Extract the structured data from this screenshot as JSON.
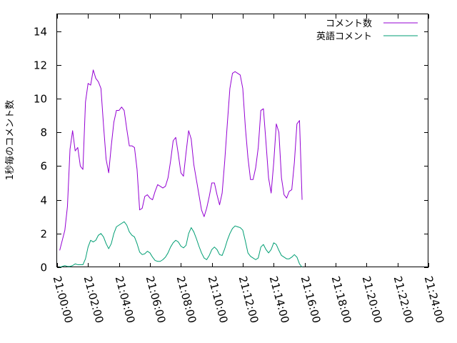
{
  "chart_data": {
    "type": "line",
    "title": "",
    "xlabel": "",
    "ylabel": "1秒毎のコメント数",
    "xlim": [
      "21:00:00",
      "21:24:00"
    ],
    "ylim": [
      0,
      15
    ],
    "x_ticks": [
      "21:00:00",
      "21:02:00",
      "21:04:00",
      "21:06:00",
      "21:08:00",
      "21:10:00",
      "21:12:00",
      "21:14:00",
      "21:16:00",
      "21:18:00",
      "21:20:00",
      "21:22:00",
      "21:24:00"
    ],
    "y_ticks": [
      "0",
      "2",
      "4",
      "6",
      "8",
      "10",
      "12",
      "14"
    ],
    "grid": false,
    "legend_position": "top-right",
    "series": [
      {
        "name": "コメント数",
        "color": "#9400d3",
        "points": [
          [
            "21:00:10",
            1.0
          ],
          [
            "21:00:30",
            2.2
          ],
          [
            "21:00:40",
            3.6
          ],
          [
            "21:00:50",
            7.0
          ],
          [
            "21:01:00",
            8.1
          ],
          [
            "21:01:10",
            6.9
          ],
          [
            "21:01:20",
            7.1
          ],
          [
            "21:01:30",
            6.0
          ],
          [
            "21:01:40",
            5.8
          ],
          [
            "21:01:50",
            9.8
          ],
          [
            "21:02:00",
            10.9
          ],
          [
            "21:02:10",
            10.8
          ],
          [
            "21:02:20",
            11.7
          ],
          [
            "21:02:30",
            11.2
          ],
          [
            "21:02:40",
            11.0
          ],
          [
            "21:02:50",
            10.6
          ],
          [
            "21:03:00",
            8.4
          ],
          [
            "21:03:10",
            6.4
          ],
          [
            "21:03:20",
            5.6
          ],
          [
            "21:03:30",
            7.2
          ],
          [
            "21:03:40",
            8.6
          ],
          [
            "21:03:50",
            9.3
          ],
          [
            "21:04:00",
            9.3
          ],
          [
            "21:04:10",
            9.5
          ],
          [
            "21:04:20",
            9.3
          ],
          [
            "21:04:30",
            8.2
          ],
          [
            "21:04:40",
            7.2
          ],
          [
            "21:04:50",
            7.2
          ],
          [
            "21:05:00",
            7.1
          ],
          [
            "21:05:10",
            5.8
          ],
          [
            "21:05:20",
            3.4
          ],
          [
            "21:05:30",
            3.5
          ],
          [
            "21:05:40",
            4.2
          ],
          [
            "21:05:50",
            4.3
          ],
          [
            "21:06:00",
            4.1
          ],
          [
            "21:06:10",
            4.0
          ],
          [
            "21:06:20",
            4.5
          ],
          [
            "21:06:30",
            4.9
          ],
          [
            "21:06:40",
            4.8
          ],
          [
            "21:06:50",
            4.7
          ],
          [
            "21:07:00",
            4.8
          ],
          [
            "21:07:10",
            5.3
          ],
          [
            "21:07:20",
            6.3
          ],
          [
            "21:07:30",
            7.5
          ],
          [
            "21:07:40",
            7.7
          ],
          [
            "21:07:50",
            6.7
          ],
          [
            "21:08:00",
            5.6
          ],
          [
            "21:08:10",
            5.4
          ],
          [
            "21:08:20",
            6.8
          ],
          [
            "21:08:30",
            8.1
          ],
          [
            "21:08:40",
            7.6
          ],
          [
            "21:08:50",
            6.1
          ],
          [
            "21:09:00",
            5.2
          ],
          [
            "21:09:10",
            4.3
          ],
          [
            "21:09:20",
            3.4
          ],
          [
            "21:09:30",
            3.0
          ],
          [
            "21:09:40",
            3.5
          ],
          [
            "21:09:50",
            4.2
          ],
          [
            "21:10:00",
            5.0
          ],
          [
            "21:10:10",
            5.0
          ],
          [
            "21:10:20",
            4.3
          ],
          [
            "21:10:30",
            3.7
          ],
          [
            "21:10:40",
            4.4
          ],
          [
            "21:10:50",
            6.3
          ],
          [
            "21:11:00",
            8.5
          ],
          [
            "21:11:10",
            10.6
          ],
          [
            "21:11:20",
            11.5
          ],
          [
            "21:11:30",
            11.6
          ],
          [
            "21:11:40",
            11.5
          ],
          [
            "21:11:50",
            11.4
          ],
          [
            "21:12:00",
            10.6
          ],
          [
            "21:12:10",
            8.3
          ],
          [
            "21:12:20",
            6.5
          ],
          [
            "21:12:30",
            5.2
          ],
          [
            "21:12:40",
            5.2
          ],
          [
            "21:12:50",
            5.9
          ],
          [
            "21:13:00",
            7.1
          ],
          [
            "21:13:10",
            9.3
          ],
          [
            "21:13:20",
            9.4
          ],
          [
            "21:13:30",
            7.4
          ],
          [
            "21:13:40",
            5.3
          ],
          [
            "21:13:50",
            4.4
          ],
          [
            "21:14:00",
            6.2
          ],
          [
            "21:14:10",
            8.5
          ],
          [
            "21:14:20",
            8.0
          ],
          [
            "21:14:30",
            5.3
          ],
          [
            "21:14:40",
            4.3
          ],
          [
            "21:14:50",
            4.1
          ],
          [
            "21:15:00",
            4.5
          ],
          [
            "21:15:10",
            4.6
          ],
          [
            "21:15:20",
            6.2
          ],
          [
            "21:15:30",
            8.5
          ],
          [
            "21:15:40",
            8.7
          ],
          [
            "21:15:50",
            4.0
          ]
        ]
      },
      {
        "name": "英語コメント",
        "color": "#009e73",
        "points": [
          [
            "21:00:10",
            0.0
          ],
          [
            "21:00:20",
            0.05
          ],
          [
            "21:00:30",
            0.1
          ],
          [
            "21:00:40",
            0.05
          ],
          [
            "21:00:50",
            0.05
          ],
          [
            "21:01:00",
            0.1
          ],
          [
            "21:01:10",
            0.2
          ],
          [
            "21:01:20",
            0.15
          ],
          [
            "21:01:30",
            0.15
          ],
          [
            "21:01:40",
            0.15
          ],
          [
            "21:01:50",
            0.5
          ],
          [
            "21:02:00",
            1.2
          ],
          [
            "21:02:10",
            1.6
          ],
          [
            "21:02:20",
            1.5
          ],
          [
            "21:02:30",
            1.6
          ],
          [
            "21:02:40",
            1.9
          ],
          [
            "21:02:50",
            2.0
          ],
          [
            "21:03:00",
            1.8
          ],
          [
            "21:03:10",
            1.4
          ],
          [
            "21:03:20",
            1.1
          ],
          [
            "21:03:30",
            1.4
          ],
          [
            "21:03:40",
            2.0
          ],
          [
            "21:03:50",
            2.4
          ],
          [
            "21:04:00",
            2.5
          ],
          [
            "21:04:10",
            2.6
          ],
          [
            "21:04:20",
            2.7
          ],
          [
            "21:04:30",
            2.5
          ],
          [
            "21:04:40",
            2.1
          ],
          [
            "21:04:50",
            1.9
          ],
          [
            "21:05:00",
            1.8
          ],
          [
            "21:05:10",
            1.4
          ],
          [
            "21:05:20",
            0.9
          ],
          [
            "21:05:30",
            0.75
          ],
          [
            "21:05:40",
            0.8
          ],
          [
            "21:05:50",
            0.95
          ],
          [
            "21:06:00",
            0.85
          ],
          [
            "21:06:10",
            0.6
          ],
          [
            "21:06:20",
            0.4
          ],
          [
            "21:06:30",
            0.35
          ],
          [
            "21:06:40",
            0.35
          ],
          [
            "21:06:50",
            0.45
          ],
          [
            "21:07:00",
            0.6
          ],
          [
            "21:07:10",
            0.85
          ],
          [
            "21:07:20",
            1.2
          ],
          [
            "21:07:30",
            1.45
          ],
          [
            "21:07:40",
            1.6
          ],
          [
            "21:07:50",
            1.5
          ],
          [
            "21:08:00",
            1.25
          ],
          [
            "21:08:10",
            1.15
          ],
          [
            "21:08:20",
            1.3
          ],
          [
            "21:08:30",
            2.0
          ],
          [
            "21:08:40",
            2.35
          ],
          [
            "21:08:50",
            2.1
          ],
          [
            "21:09:00",
            1.7
          ],
          [
            "21:09:10",
            1.25
          ],
          [
            "21:09:20",
            0.85
          ],
          [
            "21:09:30",
            0.55
          ],
          [
            "21:09:40",
            0.45
          ],
          [
            "21:09:50",
            0.7
          ],
          [
            "21:10:00",
            1.05
          ],
          [
            "21:10:10",
            1.2
          ],
          [
            "21:10:20",
            1.05
          ],
          [
            "21:10:30",
            0.75
          ],
          [
            "21:10:40",
            0.7
          ],
          [
            "21:10:50",
            1.1
          ],
          [
            "21:11:00",
            1.6
          ],
          [
            "21:11:10",
            2.0
          ],
          [
            "21:11:20",
            2.3
          ],
          [
            "21:11:30",
            2.45
          ],
          [
            "21:11:40",
            2.4
          ],
          [
            "21:11:50",
            2.35
          ],
          [
            "21:12:00",
            2.2
          ],
          [
            "21:12:10",
            1.55
          ],
          [
            "21:12:20",
            0.85
          ],
          [
            "21:12:30",
            0.65
          ],
          [
            "21:12:40",
            0.55
          ],
          [
            "21:12:50",
            0.45
          ],
          [
            "21:13:00",
            0.55
          ],
          [
            "21:13:10",
            1.2
          ],
          [
            "21:13:20",
            1.35
          ],
          [
            "21:13:30",
            1.05
          ],
          [
            "21:13:40",
            0.85
          ],
          [
            "21:13:50",
            1.05
          ],
          [
            "21:14:00",
            1.45
          ],
          [
            "21:14:10",
            1.35
          ],
          [
            "21:14:20",
            1.0
          ],
          [
            "21:14:30",
            0.7
          ],
          [
            "21:14:40",
            0.6
          ],
          [
            "21:14:50",
            0.5
          ],
          [
            "21:15:00",
            0.5
          ],
          [
            "21:15:10",
            0.6
          ],
          [
            "21:15:20",
            0.75
          ],
          [
            "21:15:30",
            0.6
          ],
          [
            "21:15:40",
            0.2
          ],
          [
            "21:15:50",
            0.0
          ]
        ]
      }
    ]
  }
}
